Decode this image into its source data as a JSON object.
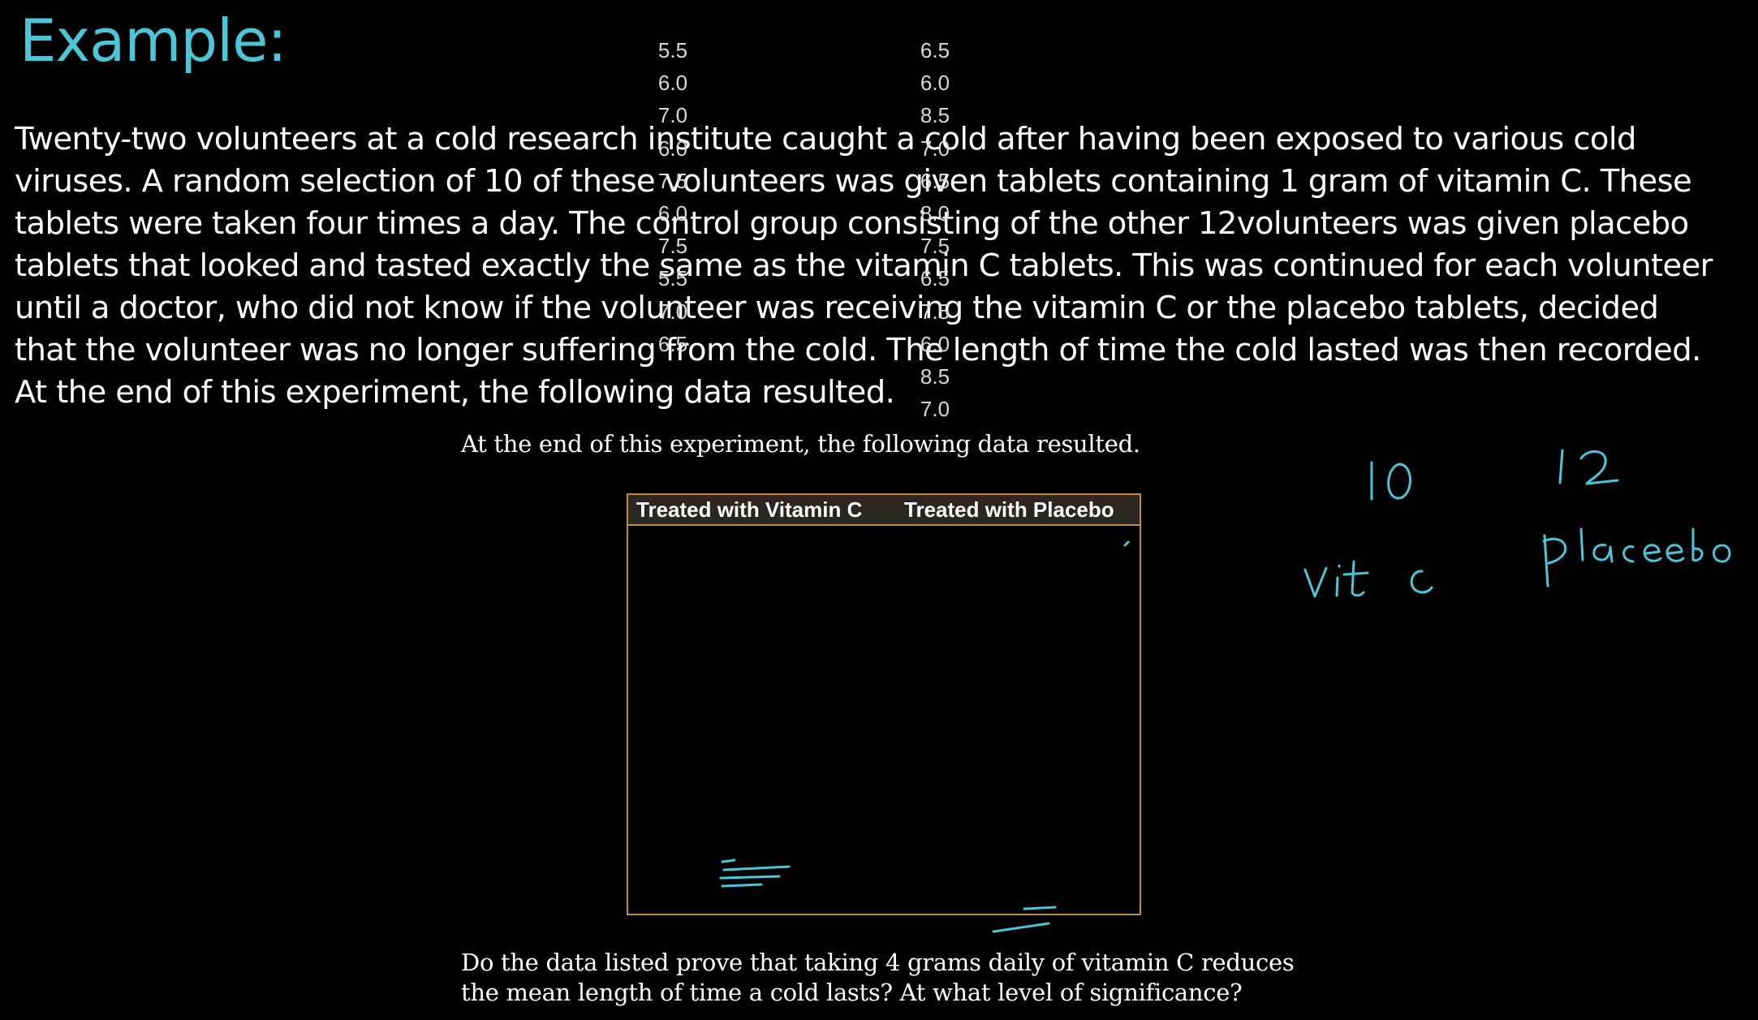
{
  "slide": {
    "title": "Example:",
    "paragraph": "Twenty-two volunteers at a cold research institute caught a cold after having been exposed to various cold viruses. A random selection of 10 of these volunteers was given tablets containing 1 gram of vitamin C. These tablets were taken four times a day. The control group consisting of the other 12volunteers was given placebo tablets that looked and tasted exactly the same as the vitamin C tablets. This was continued for each volunteer until a doctor, who did not know if the volunteer was receiving the vitamin C or the placebo tablets, decided that the volunteer was no longer suffering from the cold. The length of time the cold lasted was then recorded. At the end of this experiment, the following data resulted."
  },
  "excerpt": {
    "caption": "At the end of this experiment, the following data resulted.",
    "question": "Do the data listed prove that taking 4 grams daily of vitamin C reduces the mean length of time a cold lasts? At what level of significance?"
  },
  "table": {
    "headers": [
      "Treated with Vitamin C",
      "Treated with Placebo"
    ],
    "vitamin_c": [
      "5.5",
      "6.0",
      "7.0",
      "6.0",
      "7.5",
      "6.0",
      "7.5",
      "5.5",
      "7.0",
      "6.5"
    ],
    "placebo": [
      "6.5",
      "6.0",
      "8.5",
      "7.0",
      "6.5",
      "8.0",
      "7.5",
      "6.5",
      "7.5",
      "6.0",
      "8.5",
      "7.0"
    ]
  },
  "annotations": {
    "ink_color": "#4cc6d6",
    "items": [
      "10",
      "12",
      "vit c",
      "placebo"
    ]
  },
  "colors": {
    "background": "#000000",
    "title": "#4cc6d6",
    "text": "#ffffff",
    "table_border": "#c08a4a"
  }
}
